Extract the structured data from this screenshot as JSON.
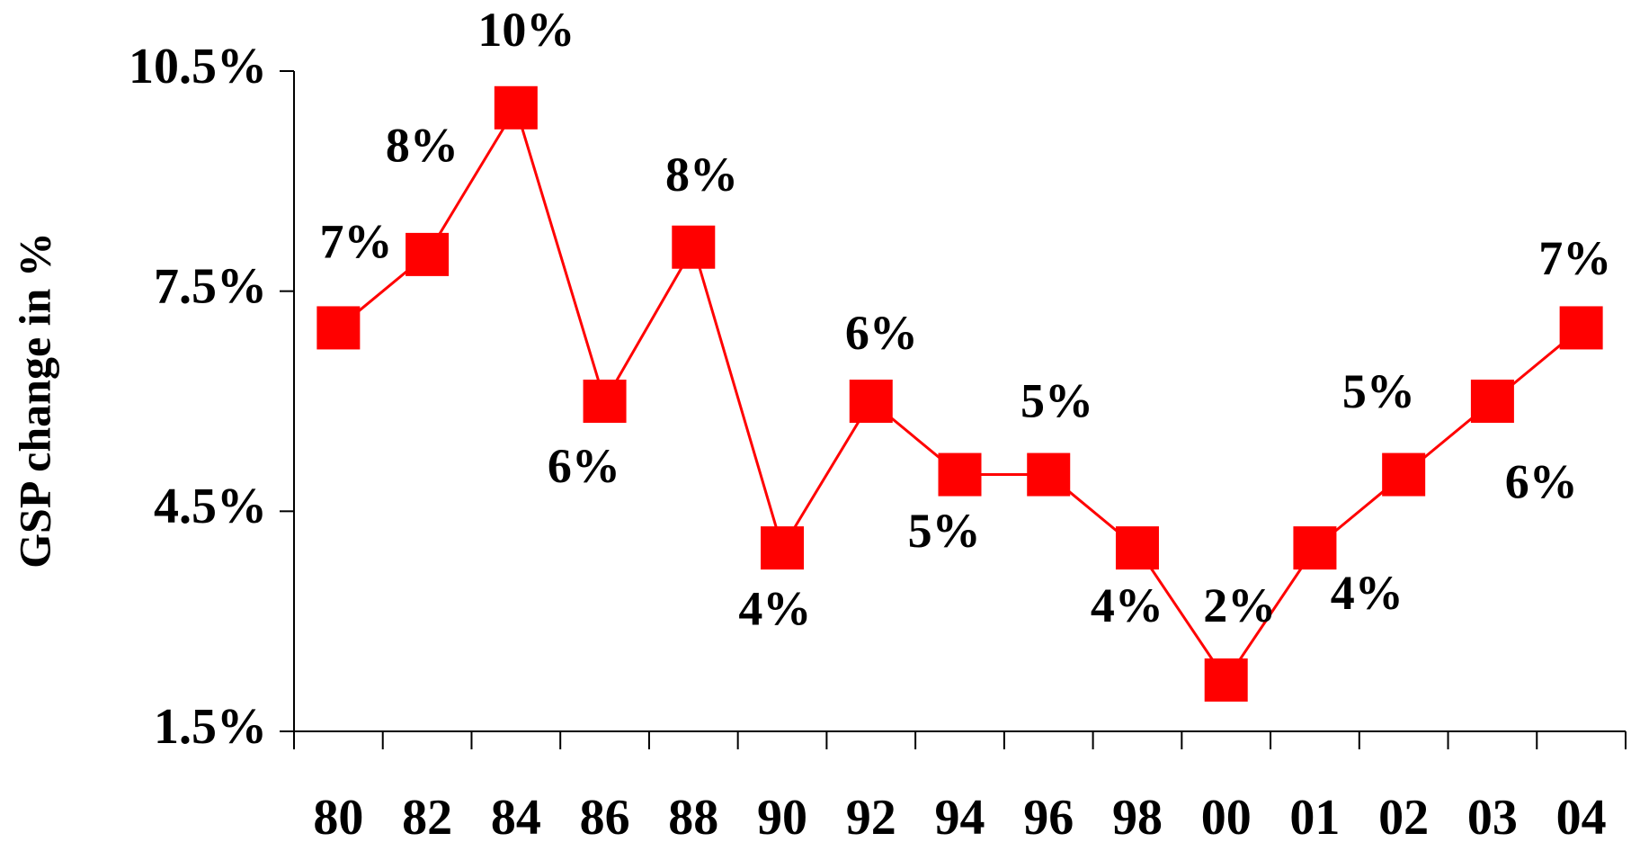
{
  "chart_data": {
    "type": "line",
    "y_label": "GSP change in %",
    "categories": [
      "80",
      "82",
      "84",
      "86",
      "88",
      "90",
      "92",
      "94",
      "96",
      "98",
      "00",
      "01",
      "02",
      "03",
      "04"
    ],
    "series": [
      {
        "color": "#ff0000",
        "values": [
          7.0,
          8.0,
          10.0,
          6.0,
          8.1,
          4.0,
          6.0,
          5.0,
          5.0,
          4.0,
          2.2,
          4.0,
          5.0,
          6.0,
          7.0
        ],
        "value_labels": [
          "7%",
          "8%",
          "10%",
          "6%",
          "8%",
          "4%",
          "6%",
          "5%",
          "5%",
          "4%",
          "2%",
          "4%",
          "5%",
          "6%",
          "7%"
        ]
      }
    ],
    "ylim": [
      1.5,
      10.5
    ],
    "yticks": [
      {
        "value": 1.5,
        "label": "1.5%"
      },
      {
        "value": 4.5,
        "label": "4.5%"
      },
      {
        "value": 7.5,
        "label": "7.5%"
      },
      {
        "value": 10.5,
        "label": "10.5%"
      }
    ],
    "grid": false
  }
}
